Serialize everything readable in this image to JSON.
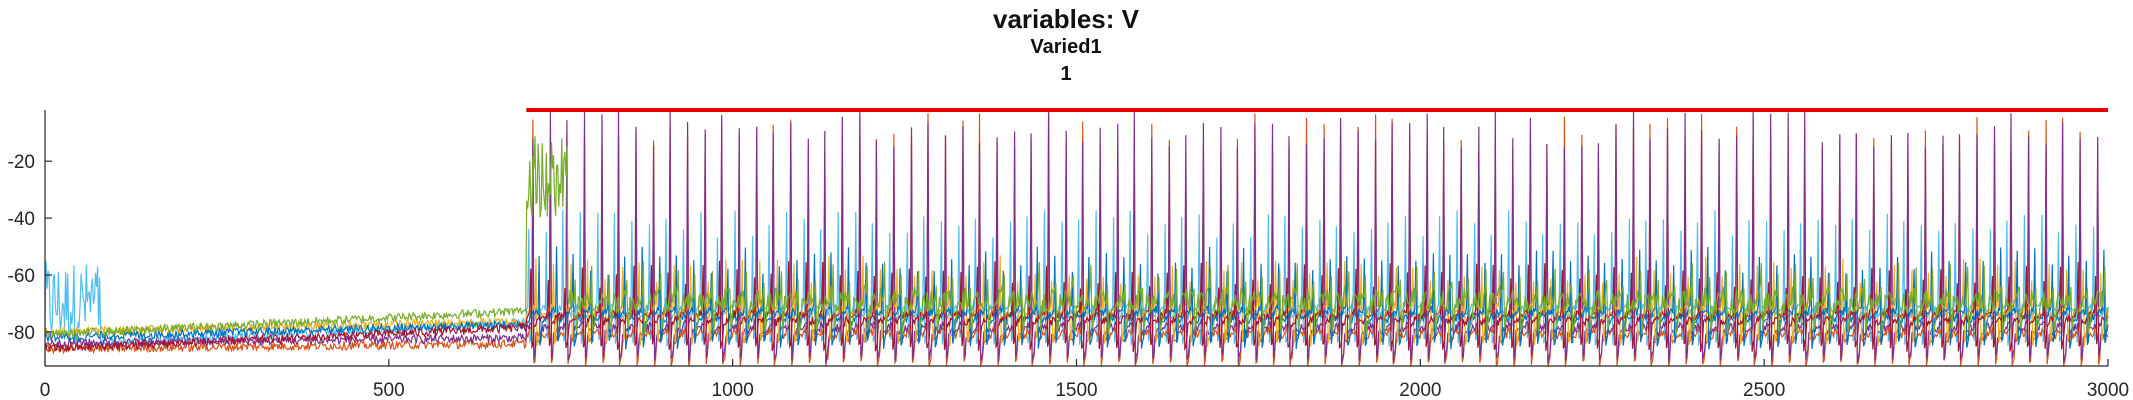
{
  "chart_data": {
    "type": "line",
    "title": "variables: V",
    "subtitle": "Varied1",
    "subtitle2": "1",
    "xlim": [
      0,
      3000
    ],
    "ylim": [
      -92,
      -2
    ],
    "xticks": [
      0,
      500,
      1000,
      1500,
      2000,
      2500,
      3000
    ],
    "yticks": [
      -20,
      -40,
      -60,
      -80
    ],
    "grid": false,
    "annotations": [
      {
        "type": "hline",
        "y": -2,
        "x_start": 700,
        "x_end": 3000,
        "color": "#e50000"
      }
    ],
    "series": [
      {
        "color": "#4dbeee",
        "baseline_start": -85,
        "baseline_end": -76,
        "spike_peak": -42,
        "period": 25,
        "phase": 3,
        "spike_start": 700,
        "burst": [
          0,
          80,
          -70
        ]
      },
      {
        "color": "#d95319",
        "baseline_start": -86,
        "baseline_end": -84,
        "spike_peak": -10,
        "period": 25,
        "phase": 9,
        "spike_start": 700,
        "burst": [
          0,
          0,
          0
        ]
      },
      {
        "color": "#7e2f8e",
        "baseline_start": -84,
        "baseline_end": -82,
        "spike_peak": -8,
        "period": 25,
        "phase": 9,
        "spike_start": 700,
        "burst": [
          0,
          0,
          0
        ]
      },
      {
        "color": "#edb120",
        "baseline_start": -80,
        "baseline_end": -76,
        "spike_peak": -58,
        "period": 25,
        "phase": 14,
        "spike_start": 700,
        "burst": [
          0,
          0,
          0
        ]
      },
      {
        "color": "#0072bd",
        "baseline_start": -82,
        "baseline_end": -77,
        "spike_peak": -55,
        "period": 25,
        "phase": 18,
        "spike_start": 700,
        "burst": [
          0,
          0,
          0
        ]
      },
      {
        "color": "#a2142f",
        "baseline_start": -86,
        "baseline_end": -78,
        "spike_peak": -60,
        "period": 25,
        "phase": 6,
        "spike_start": 700,
        "burst": [
          0,
          0,
          0
        ]
      },
      {
        "color": "#77ac30",
        "baseline_start": -81,
        "baseline_end": -72,
        "spike_peak": -60,
        "period": 25,
        "phase": 20,
        "spike_start": 700,
        "burst": [
          700,
          760,
          -25
        ]
      }
    ]
  }
}
